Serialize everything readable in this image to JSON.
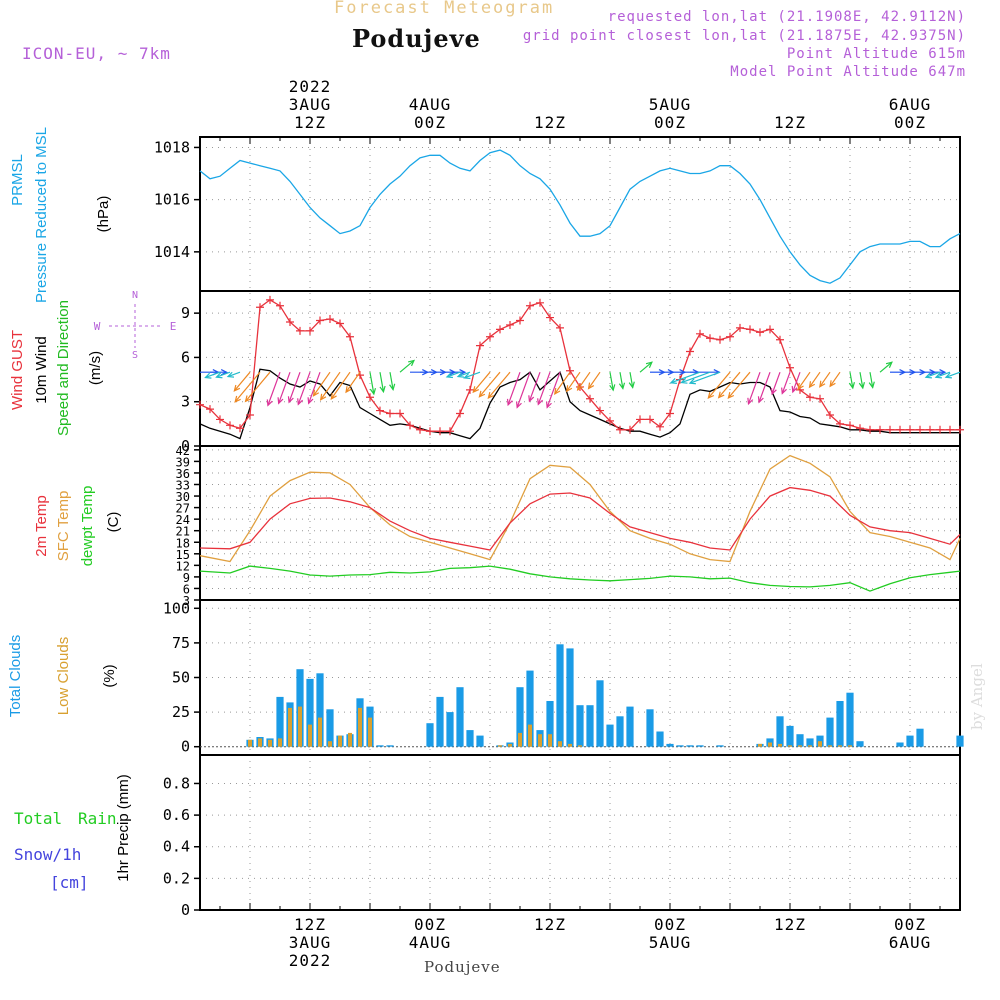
{
  "header": {
    "title": "Forecast Meteogram",
    "place": "Podujeve",
    "model": "ICON-EU, ~ 7km",
    "requested": "requested lon,lat (21.1908E, 42.9112N)",
    "gridpoint": "grid point closest lon,lat (21.1875E, 42.9375N)",
    "point_alt": "Point Altitude 615m",
    "model_alt": "Model Point Altitude 647m"
  },
  "footer": {
    "place": "Podujeve",
    "credit": "by Angel"
  },
  "colors": {
    "pressure": "#1aa6e6",
    "gust": "#e8323c",
    "wind": "#000000",
    "direction_label": "#22bb22",
    "temp2m": "#e8323c",
    "sfc": "#e0a040",
    "dewpt": "#22cc22",
    "total_clouds": "#1a9be6",
    "low_clouds": "#d8a030",
    "rain": "#22cc22",
    "snow": "#4444dd",
    "legend_purple": "#b560d8"
  },
  "time_axis": {
    "top_labels": [
      {
        "h": 12,
        "lines": [
          "2022",
          "3AUG",
          "12Z"
        ]
      },
      {
        "h": 24,
        "lines": [
          "4AUG",
          "00Z"
        ]
      },
      {
        "h": 36,
        "lines": [
          "12Z"
        ]
      },
      {
        "h": 48,
        "lines": [
          "5AUG",
          "00Z"
        ]
      },
      {
        "h": 60,
        "lines": [
          "12Z"
        ]
      },
      {
        "h": 72,
        "lines": [
          "6AUG",
          "00Z"
        ]
      }
    ],
    "bottom_labels": [
      {
        "h": 12,
        "lines": [
          "12Z",
          "3AUG",
          "2022"
        ]
      },
      {
        "h": 24,
        "lines": [
          "00Z",
          "4AUG"
        ]
      },
      {
        "h": 36,
        "lines": [
          "12Z"
        ]
      },
      {
        "h": 48,
        "lines": [
          "00Z",
          "5AUG"
        ]
      },
      {
        "h": 60,
        "lines": [
          "12Z"
        ]
      },
      {
        "h": 72,
        "lines": [
          "00Z",
          "6AUG"
        ]
      }
    ],
    "range_hours": [
      1,
      77
    ]
  },
  "chart_data": [
    {
      "type": "line",
      "panel": "pressure",
      "labels": [
        "PRMSL",
        "Pressure Reduced to MSL"
      ],
      "ylabel": "(hPa)",
      "ylim": [
        1012.5,
        1018.4
      ],
      "yticks": [
        1014,
        1016,
        1018
      ],
      "series": [
        {
          "name": "PRMSL",
          "x": [
            1,
            2,
            3,
            4,
            5,
            6,
            7,
            8,
            9,
            10,
            11,
            12,
            13,
            14,
            15,
            16,
            17,
            18,
            19,
            20,
            21,
            22,
            23,
            24,
            25,
            26,
            27,
            28,
            29,
            30,
            31,
            32,
            33,
            34,
            35,
            36,
            37,
            38,
            39,
            40,
            41,
            42,
            43,
            44,
            45,
            46,
            47,
            48,
            49,
            50,
            51,
            52,
            53,
            54,
            55,
            56,
            57,
            58,
            59,
            60,
            61,
            62,
            63,
            64,
            65,
            66,
            67,
            68,
            69,
            70,
            71,
            72,
            73,
            74,
            75,
            76,
            77
          ],
          "values": [
            1017.1,
            1016.8,
            1016.9,
            1017.2,
            1017.5,
            1017.4,
            1017.3,
            1017.2,
            1017.1,
            1016.7,
            1016.2,
            1015.7,
            1015.3,
            1015.0,
            1014.7,
            1014.8,
            1015.0,
            1015.7,
            1016.2,
            1016.6,
            1016.9,
            1017.3,
            1017.6,
            1017.7,
            1017.7,
            1017.4,
            1017.2,
            1017.1,
            1017.5,
            1017.8,
            1017.9,
            1017.7,
            1017.3,
            1017.0,
            1016.8,
            1016.4,
            1015.8,
            1015.1,
            1014.6,
            1014.6,
            1014.7,
            1015.0,
            1015.7,
            1016.4,
            1016.7,
            1016.9,
            1017.1,
            1017.2,
            1017.1,
            1017.0,
            1017.0,
            1017.1,
            1017.3,
            1017.3,
            1017.0,
            1016.6,
            1016.0,
            1015.3,
            1014.6,
            1014.0,
            1013.5,
            1013.1,
            1012.9,
            1012.8,
            1013.0,
            1013.5,
            1014.0,
            1014.2,
            1014.3,
            1014.3,
            1014.3,
            1014.4,
            1014.4,
            1014.2,
            1014.2,
            1014.5,
            1014.7
          ]
        }
      ]
    },
    {
      "type": "line",
      "panel": "wind",
      "labels": [
        "Wind GUST",
        "10m Wind",
        "Speed and Direction"
      ],
      "ylabel": "(m/s)",
      "compass": {
        "n": "N",
        "s": "S",
        "w": "W",
        "e": "E"
      },
      "ylim": [
        0,
        10.5
      ],
      "yticks": [
        0,
        3,
        6,
        9
      ],
      "series": [
        {
          "name": "Wind GUST",
          "x": [
            1,
            2,
            3,
            4,
            5,
            6,
            7,
            8,
            9,
            10,
            11,
            12,
            13,
            14,
            15,
            16,
            17,
            18,
            19,
            20,
            21,
            22,
            23,
            24,
            25,
            26,
            27,
            28,
            29,
            30,
            31,
            32,
            33,
            34,
            35,
            36,
            37,
            38,
            39,
            40,
            41,
            42,
            43,
            44,
            45,
            46,
            47,
            48,
            49,
            50,
            51,
            52,
            53,
            54,
            55,
            56,
            57,
            58,
            59,
            60,
            61,
            62,
            63,
            64,
            65,
            66,
            67,
            68,
            69,
            70,
            71,
            72,
            73,
            74,
            75,
            76,
            77
          ],
          "values": [
            2.8,
            2.5,
            1.8,
            1.4,
            1.2,
            2.1,
            9.4,
            9.9,
            9.5,
            8.4,
            7.8,
            7.8,
            8.5,
            8.6,
            8.3,
            7.4,
            4.8,
            3.3,
            2.4,
            2.2,
            2.2,
            1.4,
            1.1,
            1.0,
            1.0,
            1.0,
            2.2,
            3.8,
            6.8,
            7.4,
            7.9,
            8.2,
            8.5,
            9.5,
            9.7,
            8.7,
            8.0,
            5.1,
            4.0,
            3.2,
            2.4,
            1.7,
            1.1,
            1.1,
            1.8,
            1.8,
            1.3,
            2.2,
            4.5,
            6.4,
            7.6,
            7.3,
            7.2,
            7.4,
            8.0,
            7.9,
            7.7,
            7.9,
            7.2,
            5.3,
            3.8,
            3.3,
            3.2,
            2.1,
            1.5,
            1.4,
            1.2,
            1.1,
            1.1,
            1.1,
            1.1,
            1.1,
            1.1,
            1.1,
            1.1,
            1.1,
            1.1
          ]
        },
        {
          "name": "10m Wind",
          "x": [
            1,
            2,
            3,
            4,
            5,
            6,
            7,
            8,
            9,
            10,
            11,
            12,
            13,
            14,
            15,
            16,
            17,
            18,
            19,
            20,
            21,
            22,
            23,
            24,
            25,
            26,
            27,
            28,
            29,
            30,
            31,
            32,
            33,
            34,
            35,
            36,
            37,
            38,
            39,
            40,
            41,
            42,
            43,
            44,
            45,
            46,
            47,
            48,
            49,
            50,
            51,
            52,
            53,
            54,
            55,
            56,
            57,
            58,
            59,
            60,
            61,
            62,
            63,
            64,
            65,
            66,
            67,
            68,
            69,
            70,
            71,
            72,
            73,
            74,
            75,
            76,
            77
          ],
          "values": [
            1.5,
            1.2,
            1.0,
            0.8,
            0.5,
            2.6,
            5.2,
            5.1,
            4.6,
            4.2,
            4.0,
            4.4,
            4.2,
            3.4,
            4.3,
            4.1,
            2.6,
            2.2,
            1.8,
            1.4,
            1.5,
            1.4,
            1.2,
            1.0,
            0.9,
            0.9,
            0.7,
            0.5,
            1.2,
            2.9,
            4.0,
            4.3,
            4.5,
            5.0,
            3.8,
            4.4,
            5.0,
            3.0,
            2.4,
            2.1,
            1.8,
            1.5,
            1.2,
            1.0,
            1.0,
            0.8,
            0.6,
            0.9,
            1.5,
            3.5,
            3.8,
            3.7,
            4.0,
            4.3,
            4.2,
            4.3,
            4.3,
            4.0,
            2.4,
            2.3,
            2.0,
            1.9,
            1.5,
            1.4,
            1.3,
            1.1,
            1.1,
            1.0,
            1.0,
            0.9,
            0.9,
            0.9,
            0.9,
            0.9,
            0.9,
            0.9,
            0.9
          ]
        }
      ]
    },
    {
      "type": "line",
      "panel": "temperature",
      "labels": [
        "2m Temp",
        "SFC Temp",
        "dewpt Temp"
      ],
      "ylabel": "(C)",
      "ylim": [
        3,
        43
      ],
      "yticks": [
        3,
        6,
        9,
        12,
        15,
        18,
        21,
        24,
        27,
        30,
        33,
        36,
        39,
        42
      ],
      "series": [
        {
          "name": "2m Temp",
          "x": [
            1,
            4,
            6,
            8,
            10,
            12,
            14,
            16,
            18,
            20,
            22,
            24,
            26,
            28,
            30,
            32,
            34,
            36,
            38,
            40,
            42,
            44,
            46,
            48,
            50,
            52,
            54,
            56,
            58,
            60,
            62,
            64,
            66,
            68,
            70,
            72,
            74,
            76,
            77
          ],
          "values": [
            16.5,
            16.3,
            18,
            24,
            28,
            29.4,
            29.5,
            28.5,
            27,
            23.5,
            21,
            19,
            18,
            17,
            16,
            23,
            28,
            30.5,
            30.8,
            29.5,
            25.5,
            22,
            20.5,
            19,
            18,
            16.5,
            16,
            24,
            30,
            32.2,
            31.5,
            30,
            25,
            22,
            21,
            20.5,
            19,
            17.5,
            20
          ]
        },
        {
          "name": "SFC Temp",
          "x": [
            1,
            4,
            6,
            8,
            10,
            12,
            14,
            16,
            18,
            20,
            22,
            24,
            26,
            28,
            30,
            32,
            34,
            36,
            38,
            40,
            42,
            44,
            46,
            48,
            50,
            52,
            54,
            56,
            58,
            60,
            62,
            64,
            66,
            68,
            70,
            72,
            74,
            76,
            77
          ],
          "values": [
            14.5,
            13,
            21,
            30,
            34,
            36.2,
            36,
            33,
            27,
            22.5,
            19.5,
            18,
            16.5,
            15,
            13.5,
            23,
            34.5,
            38,
            37.5,
            33,
            26,
            21,
            19,
            17.5,
            15,
            13.5,
            13,
            26,
            37,
            40.5,
            38.5,
            35,
            26,
            20.5,
            19.5,
            18,
            16.5,
            13.5,
            19
          ]
        },
        {
          "name": "dewpt Temp",
          "x": [
            1,
            4,
            6,
            8,
            10,
            12,
            14,
            16,
            18,
            20,
            22,
            24,
            26,
            28,
            30,
            32,
            34,
            36,
            38,
            40,
            42,
            44,
            46,
            48,
            50,
            52,
            54,
            56,
            58,
            60,
            62,
            64,
            66,
            68,
            70,
            72,
            74,
            76,
            77
          ],
          "values": [
            10.5,
            10,
            11.8,
            11.2,
            10.5,
            9.5,
            9.2,
            9.5,
            9.6,
            10.2,
            10,
            10.3,
            11.2,
            11.4,
            11.8,
            11,
            9.8,
            9,
            8.5,
            8.2,
            8,
            8.3,
            8.6,
            9.2,
            9,
            8.5,
            8.7,
            7.5,
            6.8,
            6.5,
            6.4,
            6.8,
            7.5,
            5.3,
            7.2,
            8.8,
            9.6,
            10.2,
            10.5
          ]
        }
      ]
    },
    {
      "type": "bar",
      "panel": "clouds",
      "labels": [
        "Total Clouds",
        "Low Clouds"
      ],
      "ylabel": "(%)",
      "ylim": [
        -6,
        106
      ],
      "yticks": [
        0,
        25,
        50,
        75,
        100
      ],
      "series": [
        {
          "name": "Total Clouds",
          "x": [
            6,
            7,
            8,
            9,
            10,
            11,
            12,
            13,
            14,
            15,
            16,
            17,
            18,
            19,
            20,
            24,
            25,
            26,
            27,
            28,
            29,
            31,
            32,
            33,
            34,
            35,
            36,
            37,
            38,
            39,
            40,
            41,
            42,
            43,
            44,
            46,
            47,
            48,
            49,
            50,
            51,
            53,
            57,
            58,
            59,
            60,
            61,
            62,
            63,
            64,
            65,
            66,
            67,
            71,
            72,
            73,
            77
          ],
          "values": [
            5,
            7,
            6,
            36,
            32,
            56,
            49,
            53,
            27,
            8,
            9,
            35,
            29,
            1,
            1,
            17,
            36,
            25,
            43,
            12,
            8,
            1,
            3,
            43,
            55,
            12,
            33,
            74,
            71,
            30,
            30,
            48,
            16,
            22,
            29,
            27,
            11,
            2,
            1,
            1,
            1,
            1,
            2,
            6,
            22,
            15,
            9,
            6,
            8,
            21,
            33,
            39,
            4,
            3,
            8,
            13,
            8
          ]
        },
        {
          "name": "Low Clouds",
          "x": [
            6,
            7,
            8,
            9,
            10,
            11,
            12,
            13,
            14,
            15,
            16,
            17,
            18,
            31,
            32,
            33,
            34,
            35,
            36,
            37,
            38,
            39,
            57,
            58,
            59,
            60,
            61,
            62,
            63,
            64,
            65,
            66
          ],
          "values": [
            5,
            6,
            5,
            6,
            28,
            29,
            16,
            21,
            4,
            8,
            10,
            28,
            21,
            1,
            2,
            10,
            16,
            9,
            9,
            4,
            2,
            1,
            2,
            3,
            2,
            1,
            1,
            1,
            4,
            1,
            1,
            1
          ]
        }
      ]
    },
    {
      "type": "line",
      "panel": "precipitation",
      "labels": [
        "Total",
        "Rain",
        "Snow/1h",
        "[cm]"
      ],
      "ylabel": "1hr Precip (mm)",
      "ylim": [
        0,
        0.98
      ],
      "yticks": [
        0,
        0.2,
        0.4,
        0.6,
        0.8
      ],
      "ytick_labels": [
        "0",
        "0.2",
        "0.4",
        "0.6",
        "0.8"
      ],
      "series": [
        {
          "name": "Total Rain",
          "x": [
            1,
            77
          ],
          "values": [
            0,
            0
          ]
        }
      ]
    }
  ]
}
